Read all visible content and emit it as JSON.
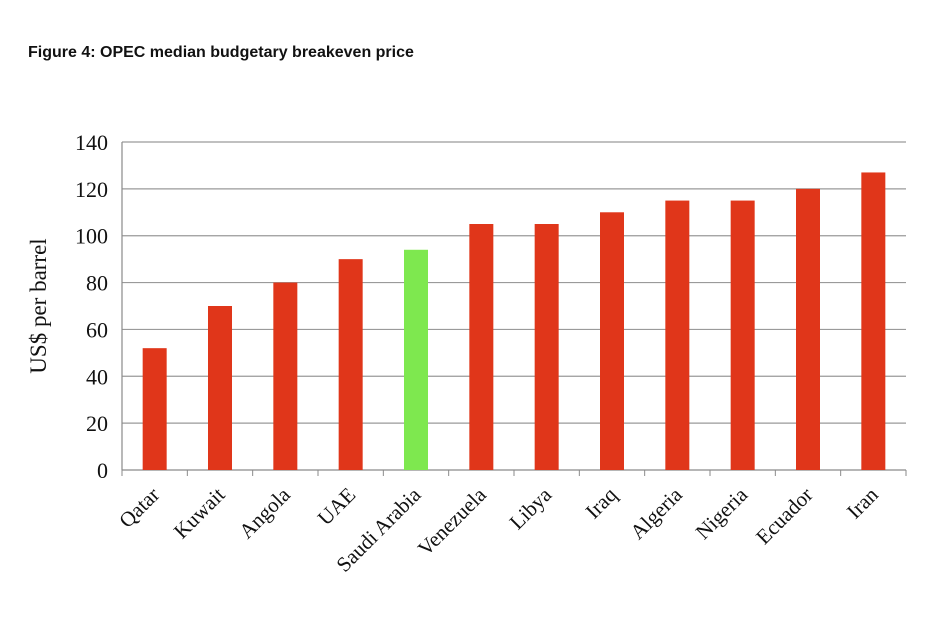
{
  "chart_data": {
    "type": "bar",
    "title": "Figure 4: OPEC median budgetary breakeven price",
    "xlabel": "",
    "ylabel": "US$ per barrel",
    "ylim": [
      0,
      140
    ],
    "yticks": [
      0,
      20,
      40,
      60,
      80,
      100,
      120,
      140
    ],
    "grid": true,
    "categories": [
      "Qatar",
      "Kuwait",
      "Angola",
      "UAE",
      "Saudi Arabia",
      "Venezuela",
      "Libya",
      "Iraq",
      "Algeria",
      "Nigeria",
      "Ecuador",
      "Iran"
    ],
    "values": [
      52,
      70,
      80,
      90,
      94,
      105,
      105,
      110,
      115,
      115,
      120,
      127
    ],
    "colors": [
      "#e0361a",
      "#e0361a",
      "#e0361a",
      "#e0361a",
      "#7ee84f",
      "#e0361a",
      "#e0361a",
      "#e0361a",
      "#e0361a",
      "#e0361a",
      "#e0361a",
      "#e0361a"
    ]
  }
}
